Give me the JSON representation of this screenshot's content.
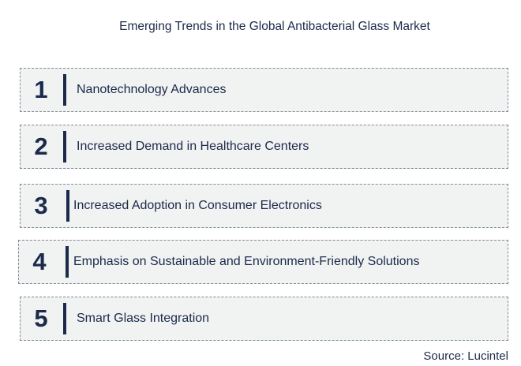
{
  "title": "Emerging Trends in the Global Antibacterial Glass Market",
  "trends": [
    {
      "number": "1",
      "label": "Nanotechnology Advances"
    },
    {
      "number": "2",
      "label": "Increased Demand in Healthcare Centers"
    },
    {
      "number": "3",
      "label": "Increased Adoption in Consumer Electronics"
    },
    {
      "number": "4",
      "label": "Emphasis on Sustainable and Environment-Friendly Solutions"
    },
    {
      "number": "5",
      "label": "Smart Glass Integration"
    }
  ],
  "source": "Source: Lucintel"
}
